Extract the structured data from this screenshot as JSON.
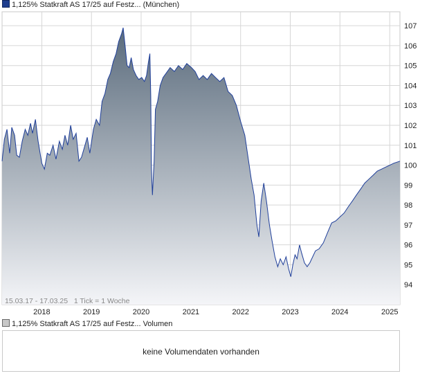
{
  "legend_main": {
    "name": "1,125% Statkraft AS 17/25 auf Festz...",
    "exchange": "(München)"
  },
  "legend_volume": {
    "name": "1,125% Statkraft AS 17/25 auf Festz...",
    "metric": "Volumen"
  },
  "period_note": "15.03.17 - 17.03.25   1 Tick = 1 Woche",
  "volume_note": "keine Volumendaten vorhanden",
  "colors": {
    "line": "#1f3f9a",
    "fill_top": "#5a6b7c",
    "fill_bottom": "#f4f5f8",
    "grid": "#d6d6d6",
    "legend_swatch": "#1f3f8f"
  },
  "chart_data": {
    "type": "area",
    "x_range": [
      "2017-03-15",
      "2025-03-17"
    ],
    "ylim": [
      93.0,
      107.7
    ],
    "y_ticks": [
      94,
      95,
      96,
      97,
      98,
      99,
      100,
      101,
      102,
      103,
      104,
      105,
      106,
      107
    ],
    "x_ticks": [
      {
        "label": "2018",
        "date": "2018-01-01"
      },
      {
        "label": "2019",
        "date": "2019-01-01"
      },
      {
        "label": "2020",
        "date": "2020-01-01"
      },
      {
        "label": "2021",
        "date": "2021-01-01"
      },
      {
        "label": "2022",
        "date": "2022-01-01"
      },
      {
        "label": "2023",
        "date": "2023-01-01"
      },
      {
        "label": "2024",
        "date": "2024-01-01"
      },
      {
        "label": "2025",
        "date": "2025-01-01"
      }
    ],
    "grid": true,
    "series": [
      {
        "points": [
          [
            "2017-03-15",
            100.2
          ],
          [
            "2017-04-01",
            101.3
          ],
          [
            "2017-04-20",
            101.8
          ],
          [
            "2017-05-10",
            100.6
          ],
          [
            "2017-05-25",
            101.9
          ],
          [
            "2017-06-15",
            101.5
          ],
          [
            "2017-07-01",
            100.5
          ],
          [
            "2017-07-20",
            100.4
          ],
          [
            "2017-08-10",
            101.2
          ],
          [
            "2017-09-01",
            101.8
          ],
          [
            "2017-09-20",
            101.5
          ],
          [
            "2017-10-10",
            102.1
          ],
          [
            "2017-10-25",
            101.6
          ],
          [
            "2017-11-15",
            102.3
          ],
          [
            "2017-12-05",
            101.2
          ],
          [
            "2018-01-01",
            100.1
          ],
          [
            "2018-01-20",
            99.8
          ],
          [
            "2018-02-10",
            100.6
          ],
          [
            "2018-03-01",
            100.5
          ],
          [
            "2018-03-25",
            101.0
          ],
          [
            "2018-04-15",
            100.3
          ],
          [
            "2018-05-10",
            101.2
          ],
          [
            "2018-06-01",
            100.8
          ],
          [
            "2018-06-20",
            101.5
          ],
          [
            "2018-07-10",
            101.0
          ],
          [
            "2018-08-01",
            102.0
          ],
          [
            "2018-08-20",
            101.3
          ],
          [
            "2018-09-10",
            101.6
          ],
          [
            "2018-10-01",
            100.2
          ],
          [
            "2018-10-20",
            100.4
          ],
          [
            "2018-11-10",
            100.9
          ],
          [
            "2018-12-01",
            101.4
          ],
          [
            "2018-12-20",
            100.6
          ],
          [
            "2019-01-15",
            101.8
          ],
          [
            "2019-02-05",
            102.3
          ],
          [
            "2019-03-01",
            102.0
          ],
          [
            "2019-03-20",
            103.2
          ],
          [
            "2019-04-10",
            103.6
          ],
          [
            "2019-05-01",
            104.3
          ],
          [
            "2019-05-20",
            104.6
          ],
          [
            "2019-06-10",
            105.2
          ],
          [
            "2019-07-01",
            105.6
          ],
          [
            "2019-07-20",
            106.2
          ],
          [
            "2019-08-10",
            106.6
          ],
          [
            "2019-08-22",
            106.9
          ],
          [
            "2019-09-05",
            106.0
          ],
          [
            "2019-09-20",
            105.0
          ],
          [
            "2019-10-05",
            104.9
          ],
          [
            "2019-10-20",
            105.4
          ],
          [
            "2019-11-05",
            104.8
          ],
          [
            "2019-11-25",
            104.5
          ],
          [
            "2019-12-15",
            104.3
          ],
          [
            "2020-01-05",
            104.4
          ],
          [
            "2020-01-25",
            104.2
          ],
          [
            "2020-02-10",
            104.5
          ],
          [
            "2020-02-24",
            105.2
          ],
          [
            "2020-03-05",
            105.6
          ],
          [
            "2020-03-12",
            103.5
          ],
          [
            "2020-03-17",
            99.8
          ],
          [
            "2020-03-24",
            98.5
          ],
          [
            "2020-04-05",
            100.2
          ],
          [
            "2020-04-15",
            102.8
          ],
          [
            "2020-05-01",
            103.2
          ],
          [
            "2020-05-20",
            104.0
          ],
          [
            "2020-06-10",
            104.4
          ],
          [
            "2020-07-01",
            104.6
          ],
          [
            "2020-08-01",
            104.9
          ],
          [
            "2020-09-01",
            104.7
          ],
          [
            "2020-10-01",
            105.0
          ],
          [
            "2020-11-01",
            104.8
          ],
          [
            "2020-12-01",
            105.1
          ],
          [
            "2021-01-05",
            104.9
          ],
          [
            "2021-02-01",
            104.7
          ],
          [
            "2021-03-01",
            104.3
          ],
          [
            "2021-04-01",
            104.5
          ],
          [
            "2021-05-01",
            104.3
          ],
          [
            "2021-06-01",
            104.6
          ],
          [
            "2021-07-01",
            104.4
          ],
          [
            "2021-08-01",
            104.2
          ],
          [
            "2021-09-01",
            104.4
          ],
          [
            "2021-10-01",
            103.7
          ],
          [
            "2021-11-01",
            103.5
          ],
          [
            "2021-12-01",
            103.0
          ],
          [
            "2022-01-01",
            102.2
          ],
          [
            "2022-02-01",
            101.5
          ],
          [
            "2022-03-01",
            100.2
          ],
          [
            "2022-03-20",
            99.3
          ],
          [
            "2022-04-10",
            98.5
          ],
          [
            "2022-05-01",
            97.0
          ],
          [
            "2022-05-15",
            96.4
          ],
          [
            "2022-06-01",
            98.2
          ],
          [
            "2022-06-20",
            99.1
          ],
          [
            "2022-07-10",
            98.2
          ],
          [
            "2022-08-01",
            97.0
          ],
          [
            "2022-08-20",
            96.2
          ],
          [
            "2022-09-10",
            95.4
          ],
          [
            "2022-10-01",
            94.9
          ],
          [
            "2022-10-20",
            95.3
          ],
          [
            "2022-11-10",
            95.0
          ],
          [
            "2022-12-01",
            95.4
          ],
          [
            "2022-12-20",
            94.8
          ],
          [
            "2023-01-05",
            94.4
          ],
          [
            "2023-01-20",
            95.0
          ],
          [
            "2023-02-05",
            95.5
          ],
          [
            "2023-02-20",
            95.3
          ],
          [
            "2023-03-10",
            96.0
          ],
          [
            "2023-03-25",
            95.6
          ],
          [
            "2023-04-15",
            95.1
          ],
          [
            "2023-05-05",
            94.9
          ],
          [
            "2023-05-25",
            95.1
          ],
          [
            "2023-06-15",
            95.4
          ],
          [
            "2023-07-05",
            95.7
          ],
          [
            "2023-08-01",
            95.8
          ],
          [
            "2023-09-01",
            96.1
          ],
          [
            "2023-10-01",
            96.6
          ],
          [
            "2023-11-01",
            97.1
          ],
          [
            "2023-12-01",
            97.2
          ],
          [
            "2024-01-01",
            97.4
          ],
          [
            "2024-02-01",
            97.6
          ],
          [
            "2024-03-01",
            97.9
          ],
          [
            "2024-04-01",
            98.2
          ],
          [
            "2024-05-01",
            98.5
          ],
          [
            "2024-06-01",
            98.8
          ],
          [
            "2024-07-01",
            99.1
          ],
          [
            "2024-08-01",
            99.3
          ],
          [
            "2024-09-01",
            99.5
          ],
          [
            "2024-10-01",
            99.7
          ],
          [
            "2024-11-01",
            99.8
          ],
          [
            "2024-12-01",
            99.9
          ],
          [
            "2025-01-01",
            100.0
          ],
          [
            "2025-02-01",
            100.1
          ],
          [
            "2025-03-17",
            100.2
          ]
        ]
      }
    ]
  }
}
